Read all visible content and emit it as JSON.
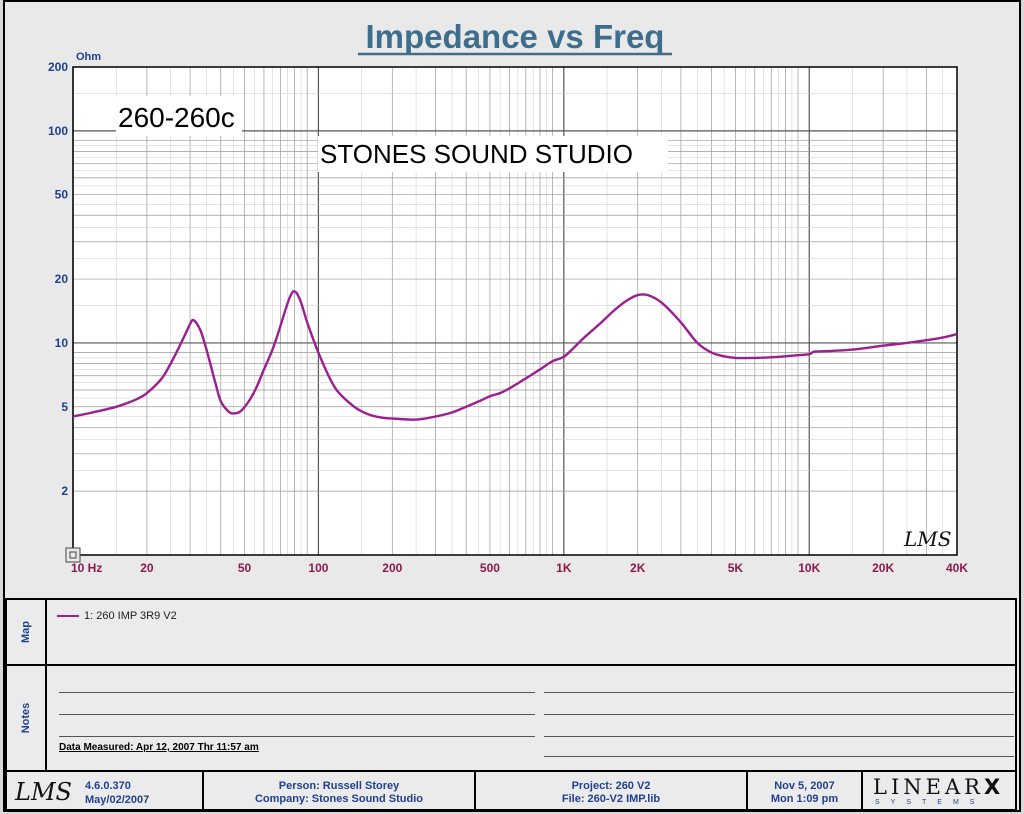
{
  "chart_data": {
    "type": "line",
    "title": "Impedance vs Freq",
    "ylabel": "Ohm",
    "x_scale": "log",
    "y_scale": "log",
    "xlim": [
      10,
      40000
    ],
    "ylim": [
      1,
      200
    ],
    "grid": true,
    "x_ticks": [
      {
        "value": 10,
        "label": "10 Hz"
      },
      {
        "value": 20,
        "label": "20"
      },
      {
        "value": 50,
        "label": "50"
      },
      {
        "value": 100,
        "label": "100"
      },
      {
        "value": 200,
        "label": "200"
      },
      {
        "value": 500,
        "label": "500"
      },
      {
        "value": 1000,
        "label": "1K"
      },
      {
        "value": 2000,
        "label": "2K"
      },
      {
        "value": 5000,
        "label": "5K"
      },
      {
        "value": 10000,
        "label": "10K"
      },
      {
        "value": 20000,
        "label": "20K"
      },
      {
        "value": 40000,
        "label": "40K"
      }
    ],
    "y_ticks": [
      {
        "value": 2,
        "label": "2"
      },
      {
        "value": 5,
        "label": "5"
      },
      {
        "value": 10,
        "label": "10"
      },
      {
        "value": 20,
        "label": "20"
      },
      {
        "value": 50,
        "label": "50"
      },
      {
        "value": 100,
        "label": "100"
      },
      {
        "value": 200,
        "label": "200"
      }
    ],
    "series": [
      {
        "name": "1: 260 IMP  3R9   V2",
        "color": "#9b1f8e",
        "x": [
          10,
          12,
          15,
          18,
          20,
          23,
          25,
          27,
          29,
          30,
          31,
          33,
          35,
          38,
          40,
          43,
          45,
          48,
          52,
          56,
          60,
          65,
          70,
          75,
          78,
          80,
          82,
          85,
          90,
          95,
          100,
          110,
          120,
          140,
          160,
          180,
          200,
          250,
          300,
          350,
          400,
          450,
          500,
          550,
          600,
          700,
          800,
          900,
          1000,
          1100,
          1200,
          1400,
          1600,
          1800,
          2000,
          2200,
          2500,
          3000,
          3500,
          4000,
          4500,
          5000,
          6000,
          7000,
          8000,
          9000,
          10000,
          10500,
          12000,
          15000,
          20000,
          25000,
          30000,
          35000,
          40000
        ],
        "y": [
          4.5,
          4.7,
          5.0,
          5.4,
          5.8,
          6.8,
          8.0,
          9.5,
          11.3,
          12.3,
          12.8,
          11.5,
          9.3,
          6.5,
          5.3,
          4.75,
          4.65,
          4.75,
          5.3,
          6.2,
          7.5,
          9.3,
          12.0,
          15.5,
          17.2,
          17.5,
          17.0,
          15.5,
          12.5,
          10.5,
          9.0,
          7.0,
          5.9,
          5.0,
          4.6,
          4.45,
          4.4,
          4.35,
          4.5,
          4.7,
          5.0,
          5.3,
          5.6,
          5.8,
          6.1,
          6.8,
          7.5,
          8.2,
          8.6,
          9.5,
          10.5,
          12.3,
          14.2,
          15.8,
          16.8,
          16.8,
          15.5,
          12.5,
          10.0,
          9.0,
          8.65,
          8.5,
          8.5,
          8.55,
          8.65,
          8.75,
          8.85,
          9.1,
          9.15,
          9.3,
          9.7,
          10.0,
          10.3,
          10.6,
          11.0
        ]
      }
    ],
    "annotations": [
      "260-260c",
      "STONES SOUND STUDIO"
    ],
    "watermark": "LMS"
  },
  "map": {
    "label": "Map"
  },
  "notes": {
    "label": "Notes",
    "measured": "Data Measured: Apr 12, 2007  Thr 11:57 am"
  },
  "footer": {
    "logo": "LMS",
    "version": "4.6.0.370",
    "version_date": "May/02/2007",
    "person": "Person: Russell Storey",
    "company": "Company: Stones Sound Studio",
    "project": "Project: 260 V2",
    "file": "File: 260-V2 IMP.lib",
    "date": "Nov  5, 2007",
    "time": "Mon  1:09 pm",
    "brand_main": "LINEAR",
    "brand_x": "X",
    "brand_sub": "SYSTEMS"
  }
}
